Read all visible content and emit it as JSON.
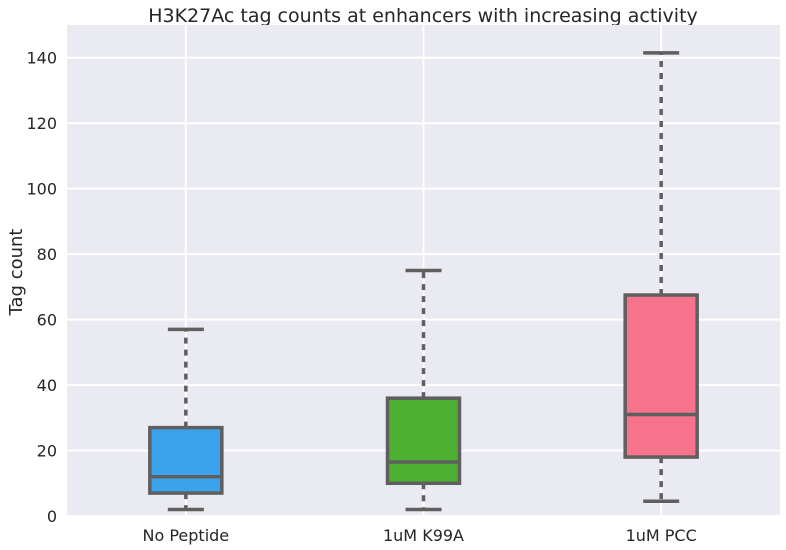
{
  "chart_data": {
    "type": "box",
    "title": "H3K27Ac tag counts at enhancers with increasing activity",
    "xlabel": "",
    "ylabel": "Tag count",
    "ylim": [
      0,
      150
    ],
    "yticks": [
      0,
      20,
      40,
      60,
      80,
      100,
      120,
      140
    ],
    "grid": true,
    "categories": [
      "No Peptide",
      "1uM K99A",
      "1uM PCC"
    ],
    "boxes": [
      {
        "label": "No Peptide",
        "whisker_low": 2,
        "q1": 7,
        "median": 12,
        "q3": 27,
        "whisker_high": 57,
        "color": "#3ba3ec"
      },
      {
        "label": "1uM K99A",
        "whisker_low": 2,
        "q1": 10,
        "median": 16.5,
        "q3": 36,
        "whisker_high": 75,
        "color": "#4cb030"
      },
      {
        "label": "1uM PCC",
        "whisker_low": 4.5,
        "q1": 18,
        "median": 31,
        "q3": 67.5,
        "whisker_high": 141.5,
        "color": "#f7738b"
      }
    ],
    "colors": {
      "background": "#eaeaf2",
      "grid": "#ffffff",
      "box_edge": "#5f5f5f"
    }
  }
}
